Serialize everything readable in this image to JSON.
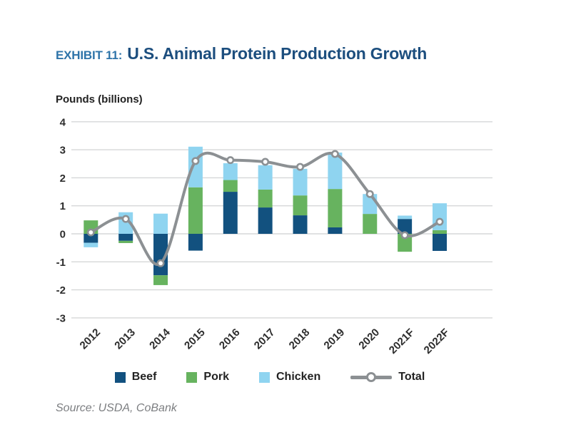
{
  "header": {
    "exhibit_label": "EXHIBIT 11:",
    "title": "U.S. Animal Protein Production Growth"
  },
  "y_axis_label": "Pounds (billions)",
  "source": "Source: USDA, CoBank",
  "colors": {
    "title_accent": "#2e74a9",
    "title_main": "#1c4e7e",
    "beef": "#12517f",
    "pork": "#67b35f",
    "chicken": "#8fd4f0",
    "total_line": "#8c9093",
    "gridline": "#d6d7d8",
    "axis_text": "#2d2d2d",
    "source_text": "#7c7e81"
  },
  "chart_data": {
    "type": "bar",
    "subtype": "stacked-bar-with-line-overlay",
    "title": "U.S. Animal Protein Production Growth",
    "ylabel": "Pounds (billions)",
    "xlabel": "",
    "ylim": [
      -3,
      4
    ],
    "yticks": [
      4,
      3,
      2,
      1,
      0,
      -1,
      -2,
      -3
    ],
    "grid": true,
    "legend_position": "bottom",
    "categories": [
      "2012",
      "2013",
      "2014",
      "2015",
      "2016",
      "2017",
      "2018",
      "2019",
      "2020",
      "2021F",
      "2022F"
    ],
    "series": [
      {
        "name": "Beef",
        "color": "#12517f",
        "values": [
          -0.32,
          -0.25,
          -1.48,
          -0.6,
          1.5,
          0.94,
          0.66,
          0.23,
          0.0,
          0.53,
          -0.61
        ]
      },
      {
        "name": "Pork",
        "color": "#67b35f",
        "values": [
          0.48,
          -0.08,
          -0.35,
          1.66,
          0.42,
          0.64,
          0.71,
          1.37,
          0.71,
          -0.64,
          0.13
        ]
      },
      {
        "name": "Chicken",
        "color": "#8fd4f0",
        "values": [
          -0.16,
          0.77,
          0.72,
          1.45,
          0.6,
          0.87,
          0.95,
          1.3,
          0.71,
          0.12,
          0.96
        ]
      }
    ],
    "line_series": {
      "name": "Total",
      "color": "#8c9093",
      "values": [
        0.05,
        0.53,
        -1.05,
        2.6,
        2.63,
        2.57,
        2.39,
        2.85,
        1.42,
        -0.05,
        0.43
      ]
    }
  }
}
